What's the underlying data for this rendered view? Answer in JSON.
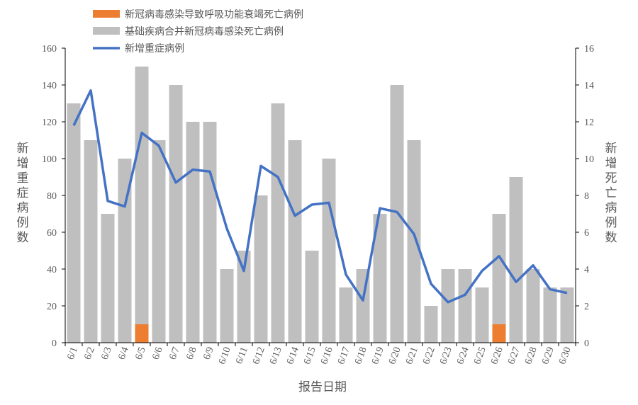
{
  "chart_data": {
    "type": "bar+line",
    "categories": [
      "6/1",
      "6/2",
      "6/3",
      "6/4",
      "6/5",
      "6/6",
      "6/7",
      "6/8",
      "6/9",
      "6/10",
      "6/11",
      "6/12",
      "6/13",
      "6/14",
      "6/15",
      "6/16",
      "6/17",
      "6/18",
      "6/19",
      "6/20",
      "6/21",
      "6/22",
      "6/23",
      "6/24",
      "6/25",
      "6/26",
      "6/27",
      "6/28",
      "6/29",
      "6/30"
    ],
    "series": [
      {
        "name": "新冠病毒感染导致呼吸功能衰竭死亡病例",
        "type": "bar",
        "axis": "right",
        "color": "#ED7D31",
        "values": [
          0,
          0,
          0,
          0,
          1,
          0,
          0,
          0,
          0,
          0,
          0,
          0,
          0,
          0,
          0,
          0,
          0,
          0,
          0,
          0,
          0,
          0,
          0,
          0,
          0,
          1,
          0,
          0,
          0,
          0
        ]
      },
      {
        "name": "基础疾病合并新冠病毒感染死亡病例",
        "type": "bar",
        "axis": "right",
        "color": "#BFBFBF",
        "values": [
          13,
          11,
          7,
          10,
          14,
          11,
          14,
          12,
          12,
          4,
          5,
          8,
          13,
          11,
          5,
          10,
          3,
          4,
          7,
          14,
          11,
          2,
          4,
          4,
          3,
          6,
          9,
          4,
          3,
          3
        ]
      },
      {
        "name": "新增重症病例",
        "type": "line",
        "axis": "left",
        "color": "#4472C4",
        "values": [
          118,
          137,
          77,
          74,
          114,
          107,
          87,
          94,
          93,
          62,
          39,
          96,
          90,
          69,
          75,
          76,
          37,
          23,
          73,
          71,
          59,
          32,
          22,
          26,
          39,
          47,
          33,
          42,
          29,
          27
        ]
      }
    ],
    "stacked": true,
    "xlabel": "报告日期",
    "ylabel_left": "新增重症病例数",
    "ylabel_right": "新增死亡病例数",
    "ylim_left": [
      0,
      160
    ],
    "yticks_left": [
      0,
      20,
      40,
      60,
      80,
      100,
      120,
      140,
      160
    ],
    "ylim_right": [
      0,
      16
    ],
    "yticks_right": [
      0,
      2,
      4,
      6,
      8,
      10,
      12,
      14,
      16
    ],
    "grid": false,
    "legend_position": "top-left"
  }
}
